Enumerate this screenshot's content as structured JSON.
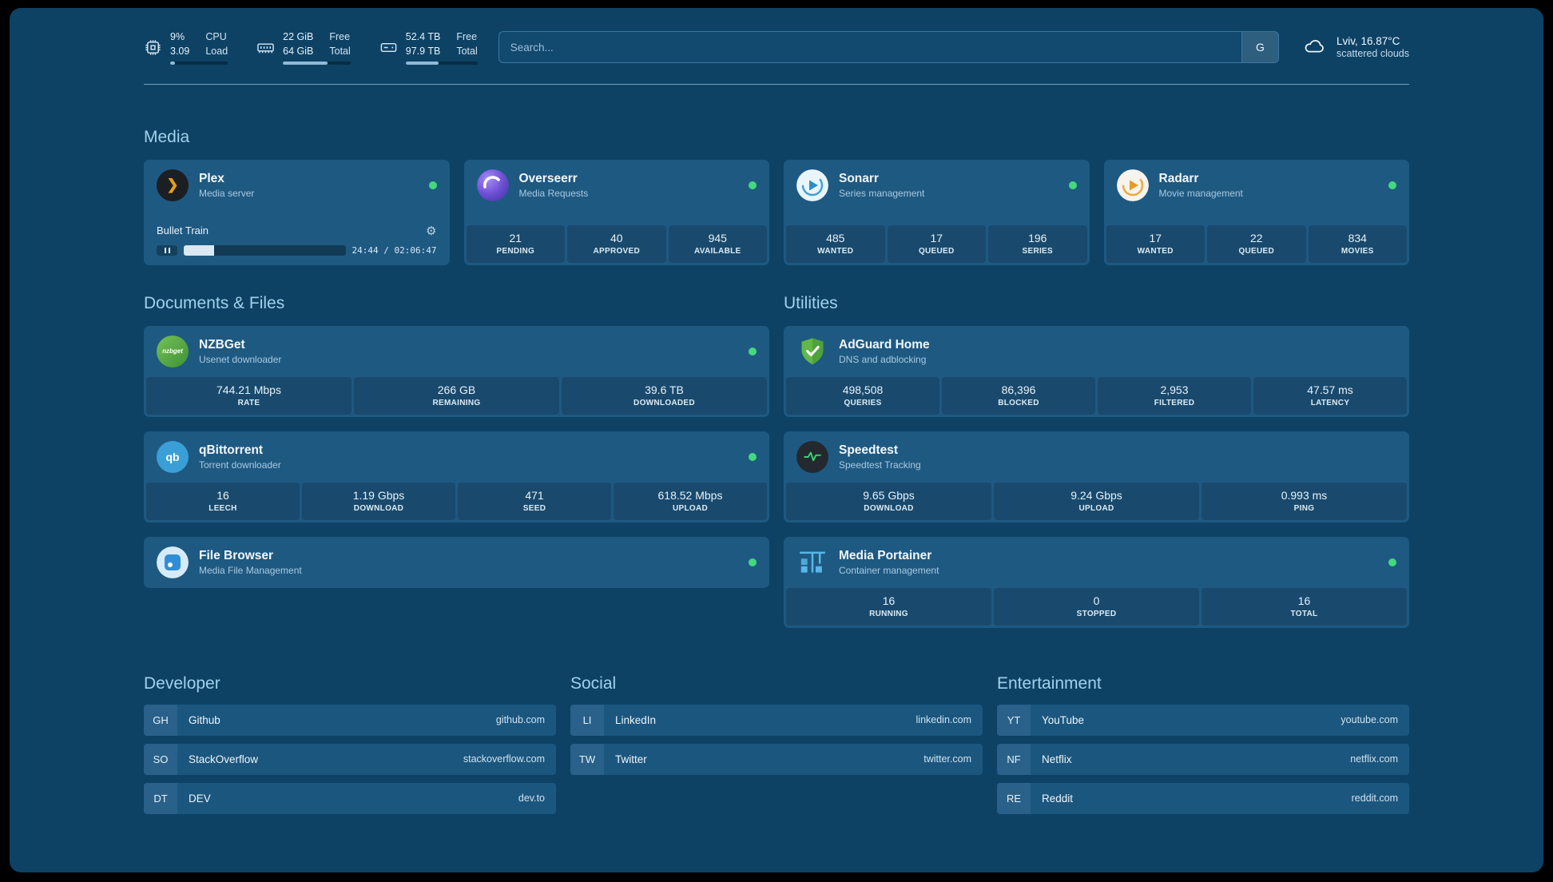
{
  "theme": {
    "background": "#0d4265",
    "card": "#1e5982",
    "status_green": "#43d97d",
    "accent_blue": "#93b9d8"
  },
  "header": {
    "cpu": {
      "usage": "9%",
      "load": "3.09",
      "labels": [
        "CPU",
        "Load"
      ],
      "progress": 9
    },
    "memory": {
      "free": "22 GiB",
      "total": "64 GiB",
      "labels": [
        "Free",
        "Total"
      ],
      "progress": 66
    },
    "disk": {
      "free": "52.4 TB",
      "total": "97.9 TB",
      "labels": [
        "Free",
        "Total"
      ],
      "progress": 46
    },
    "search": {
      "placeholder": "Search...",
      "provider": "G"
    },
    "weather": {
      "location": "Lviv, 16.87°C",
      "condition": "scattered clouds"
    }
  },
  "media": {
    "heading": "Media",
    "plex": {
      "name": "Plex",
      "subtitle": "Media server",
      "icon_glyph": "❯",
      "now_playing": "Bullet Train",
      "time": "24:44 / 02:06:47",
      "progress": 19
    },
    "overseerr": {
      "name": "Overseerr",
      "subtitle": "Media Requests",
      "stats": [
        {
          "value": "21",
          "label": "PENDING"
        },
        {
          "value": "40",
          "label": "APPROVED"
        },
        {
          "value": "945",
          "label": "AVAILABLE"
        }
      ]
    },
    "sonarr": {
      "name": "Sonarr",
      "subtitle": "Series management",
      "stats": [
        {
          "value": "485",
          "label": "WANTED"
        },
        {
          "value": "17",
          "label": "QUEUED"
        },
        {
          "value": "196",
          "label": "SERIES"
        }
      ]
    },
    "radarr": {
      "name": "Radarr",
      "subtitle": "Movie management",
      "stats": [
        {
          "value": "17",
          "label": "WANTED"
        },
        {
          "value": "22",
          "label": "QUEUED"
        },
        {
          "value": "834",
          "label": "MOVIES"
        }
      ]
    }
  },
  "documents": {
    "heading": "Documents & Files",
    "nzbget": {
      "name": "NZBGet",
      "subtitle": "Usenet downloader",
      "icon_text": "nzbget",
      "stats": [
        {
          "value": "744.21 Mbps",
          "label": "RATE"
        },
        {
          "value": "266 GB",
          "label": "REMAINING"
        },
        {
          "value": "39.6 TB",
          "label": "DOWNLOADED"
        }
      ]
    },
    "qbittorrent": {
      "name": "qBittorrent",
      "subtitle": "Torrent downloader",
      "icon_text": "qb",
      "stats": [
        {
          "value": "16",
          "label": "LEECH"
        },
        {
          "value": "1.19 Gbps",
          "label": "DOWNLOAD"
        },
        {
          "value": "471",
          "label": "SEED"
        },
        {
          "value": "618.52 Mbps",
          "label": "UPLOAD"
        }
      ]
    },
    "filebrowser": {
      "name": "File Browser",
      "subtitle": "Media File Management"
    }
  },
  "utilities": {
    "heading": "Utilities",
    "adguard": {
      "name": "AdGuard Home",
      "subtitle": "DNS and adblocking",
      "stats": [
        {
          "value": "498,508",
          "label": "QUERIES"
        },
        {
          "value": "86,396",
          "label": "BLOCKED"
        },
        {
          "value": "2,953",
          "label": "FILTERED"
        },
        {
          "value": "47.57 ms",
          "label": "LATENCY"
        }
      ]
    },
    "speedtest": {
      "name": "Speedtest",
      "subtitle": "Speedtest Tracking",
      "stats": [
        {
          "value": "9.65 Gbps",
          "label": "DOWNLOAD"
        },
        {
          "value": "9.24 Gbps",
          "label": "UPLOAD"
        },
        {
          "value": "0.993 ms",
          "label": "PING"
        }
      ]
    },
    "portainer": {
      "name": "Media Portainer",
      "subtitle": "Container management",
      "stats": [
        {
          "value": "16",
          "label": "RUNNING"
        },
        {
          "value": "0",
          "label": "STOPPED"
        },
        {
          "value": "16",
          "label": "TOTAL"
        }
      ]
    }
  },
  "bookmarks": {
    "developer": {
      "heading": "Developer",
      "items": [
        {
          "abbr": "GH",
          "name": "Github",
          "domain": "github.com"
        },
        {
          "abbr": "SO",
          "name": "StackOverflow",
          "domain": "stackoverflow.com"
        },
        {
          "abbr": "DT",
          "name": "DEV",
          "domain": "dev.to"
        }
      ]
    },
    "social": {
      "heading": "Social",
      "items": [
        {
          "abbr": "LI",
          "name": "LinkedIn",
          "domain": "linkedin.com"
        },
        {
          "abbr": "TW",
          "name": "Twitter",
          "domain": "twitter.com"
        }
      ]
    },
    "entertainment": {
      "heading": "Entertainment",
      "items": [
        {
          "abbr": "YT",
          "name": "YouTube",
          "domain": "youtube.com"
        },
        {
          "abbr": "NF",
          "name": "Netflix",
          "domain": "netflix.com"
        },
        {
          "abbr": "RE",
          "name": "Reddit",
          "domain": "reddit.com"
        }
      ]
    }
  }
}
